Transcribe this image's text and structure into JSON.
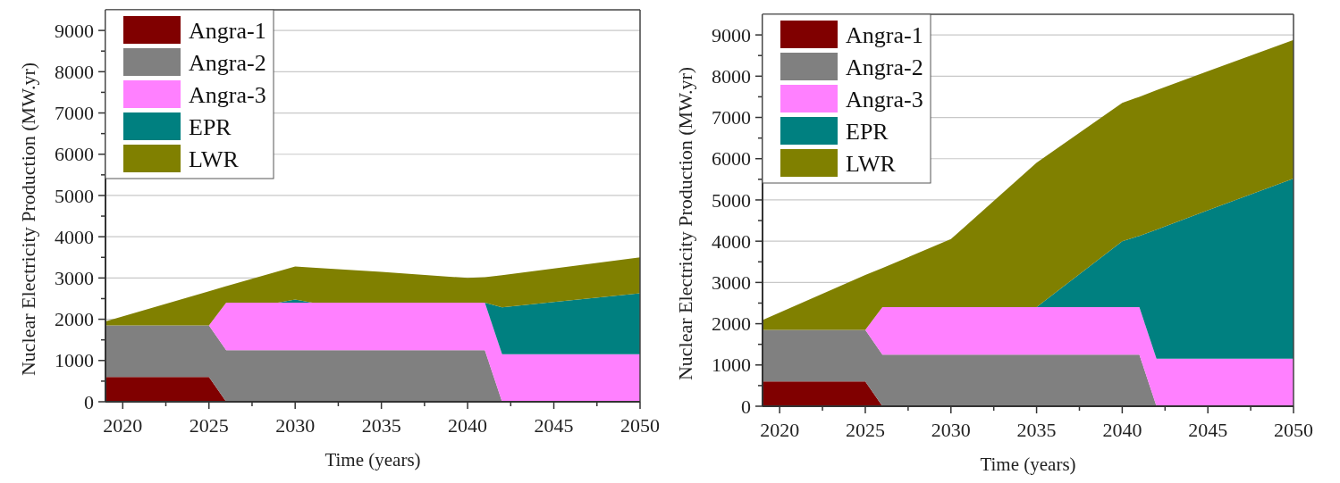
{
  "chart_data": [
    {
      "type": "area",
      "stacked": true,
      "xlabel": "Time (years)",
      "ylabel": "Nuclear Electricity Production (MW.yr)",
      "x": [
        2019,
        2025,
        2026,
        2029,
        2030,
        2031,
        2035,
        2040,
        2041,
        2042,
        2045,
        2050
      ],
      "xlim": [
        2019,
        2050
      ],
      "ylim": [
        0,
        9500
      ],
      "xticks": [
        2020,
        {
          "value": 2022.5,
          "label": null
        },
        2025,
        {
          "value": 2027.5,
          "label": null
        },
        2030,
        {
          "value": 2032.5,
          "label": null
        },
        2035,
        {
          "value": 2037.5,
          "label": null
        },
        2040,
        {
          "value": 2042.5,
          "label": null
        },
        2045,
        {
          "value": 2047.5,
          "label": null
        },
        2050
      ],
      "yticks": [
        0,
        {
          "value": 500,
          "label": null
        },
        1000,
        {
          "value": 1500,
          "label": null
        },
        2000,
        {
          "value": 2500,
          "label": null
        },
        3000,
        {
          "value": 3500,
          "label": null
        },
        4000,
        {
          "value": 4500,
          "label": null
        },
        5000,
        {
          "value": 5500,
          "label": null
        },
        6000,
        {
          "value": 6500,
          "label": null
        },
        7000,
        {
          "value": 7500,
          "label": null
        },
        8000,
        {
          "value": 8500,
          "label": null
        },
        9000
      ],
      "grid": "y",
      "legend": "top left",
      "series": [
        {
          "name": "Angra-1",
          "color": "#800000",
          "values": [
            600,
            600,
            0,
            0,
            0,
            0,
            0,
            0,
            0,
            0,
            0,
            0
          ]
        },
        {
          "name": "Angra-2",
          "color": "#808080",
          "values": [
            1250,
            1250,
            1250,
            1250,
            1250,
            1250,
            1250,
            1250,
            1250,
            0,
            0,
            0
          ]
        },
        {
          "name": "Angra-3",
          "color": "#ff80ff",
          "values": [
            0,
            0,
            1150,
            1150,
            1150,
            1150,
            1150,
            1150,
            1150,
            1150,
            1150,
            1150
          ]
        },
        {
          "name": "EPR",
          "color": "#008080",
          "values": [
            0,
            0,
            0,
            0,
            80,
            0,
            0,
            0,
            0,
            1140,
            1270,
            1480
          ]
        },
        {
          "name": "LWR",
          "color": "#808000",
          "values": [
            100,
            830,
            400,
            760,
            800,
            850,
            750,
            600,
            620,
            780,
            810,
            870
          ]
        }
      ]
    },
    {
      "type": "area",
      "stacked": true,
      "xlabel": "Time (years)",
      "ylabel": "Nuclear Electricity Production (MW.yr)",
      "x": [
        2019,
        2025,
        2026,
        2030,
        2035,
        2040,
        2041,
        2042,
        2045,
        2050
      ],
      "xlim": [
        2019,
        2050
      ],
      "ylim": [
        0,
        9500
      ],
      "xticks": [
        2020,
        {
          "value": 2022.5,
          "label": null
        },
        2025,
        {
          "value": 2027.5,
          "label": null
        },
        2030,
        {
          "value": 2032.5,
          "label": null
        },
        2035,
        {
          "value": 2037.5,
          "label": null
        },
        2040,
        {
          "value": 2042.5,
          "label": null
        },
        2045,
        {
          "value": 2047.5,
          "label": null
        },
        2050
      ],
      "yticks": [
        0,
        {
          "value": 500,
          "label": null
        },
        1000,
        {
          "value": 1500,
          "label": null
        },
        2000,
        {
          "value": 2500,
          "label": null
        },
        3000,
        {
          "value": 3500,
          "label": null
        },
        4000,
        {
          "value": 4500,
          "label": null
        },
        5000,
        {
          "value": 5500,
          "label": null
        },
        6000,
        {
          "value": 6500,
          "label": null
        },
        7000,
        {
          "value": 7500,
          "label": null
        },
        8000,
        {
          "value": 8500,
          "label": null
        },
        9000
      ],
      "grid": "y",
      "legend": "top left",
      "series": [
        {
          "name": "Angra-1",
          "color": "#800000",
          "values": [
            600,
            600,
            0,
            0,
            0,
            0,
            0,
            0,
            0,
            0
          ]
        },
        {
          "name": "Angra-2",
          "color": "#808080",
          "values": [
            1250,
            1250,
            1250,
            1250,
            1250,
            1250,
            1250,
            0,
            0,
            0
          ]
        },
        {
          "name": "Angra-3",
          "color": "#ff80ff",
          "values": [
            0,
            0,
            1150,
            1150,
            1150,
            1150,
            1150,
            1150,
            1150,
            1150
          ]
        },
        {
          "name": "EPR",
          "color": "#008080",
          "values": [
            0,
            0,
            0,
            0,
            0,
            1600,
            1730,
            3130,
            3600,
            4370
          ]
        },
        {
          "name": "LWR",
          "color": "#808000",
          "values": [
            240,
            1330,
            950,
            1650,
            3500,
            3350,
            3370,
            3380,
            3370,
            3360
          ]
        }
      ]
    }
  ]
}
